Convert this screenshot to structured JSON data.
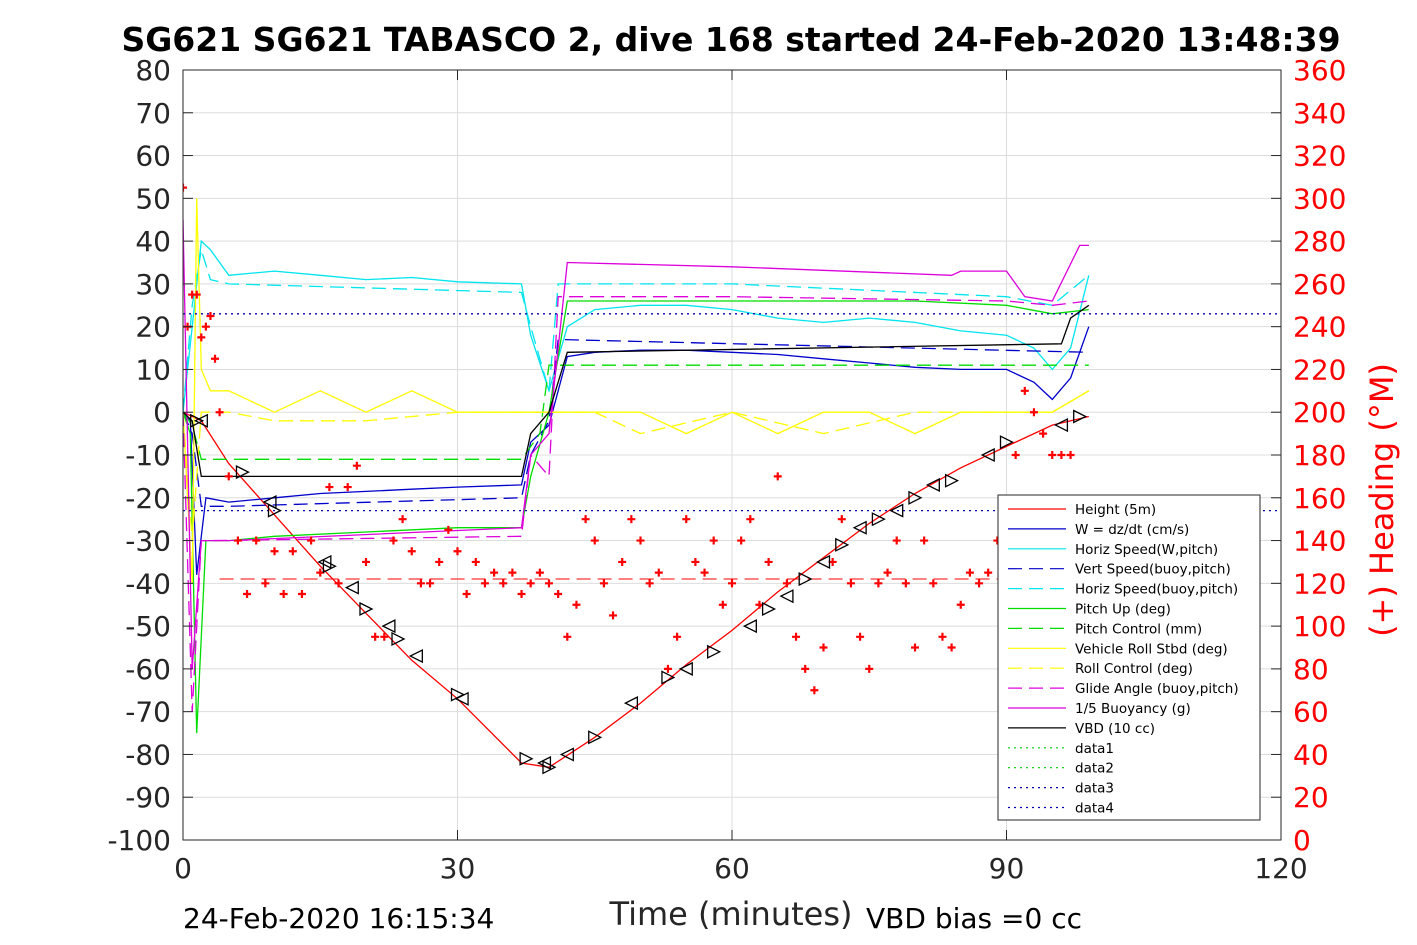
{
  "chart_data": {
    "type": "line",
    "title": "SG621 SG621 TABASCO 2, dive 168 started 24-Feb-2020 13:48:39",
    "xlabel": "Time (minutes)",
    "ylabel": "",
    "y2label": "(+) Heading (°M)",
    "xlim": [
      0,
      120
    ],
    "ylim": [
      -100,
      80
    ],
    "y2lim": [
      0,
      360
    ],
    "xticks": [
      "0",
      "30",
      "60",
      "90",
      "120"
    ],
    "yticks": [
      "80",
      "70",
      "60",
      "50",
      "40",
      "30",
      "20",
      "10",
      "0",
      "-10",
      "-20",
      "-30",
      "-40",
      "-50",
      "-60",
      "-70",
      "-80",
      "-90",
      "-100"
    ],
    "y2ticks": [
      "360",
      "340",
      "320",
      "300",
      "280",
      "260",
      "240",
      "220",
      "200",
      "180",
      "160",
      "140",
      "120",
      "100",
      "80",
      "60",
      "40",
      "20",
      "0"
    ],
    "grid": true,
    "legend_position": "lower-right",
    "footer_left": "24-Feb-2020 16:15:34",
    "footer_right": "VBD bias =0 cc",
    "colors": {
      "height": "#ff0000",
      "w": "#0000cc",
      "horiz": "#00e5ee",
      "pitch": "#00dd00",
      "roll": "#ffff00",
      "glide": "#dd00dd",
      "vbd": "#000000",
      "heading": "#ff0000",
      "data12": "#00cc00",
      "data34": "#0000aa"
    },
    "series": [
      {
        "name": "Height (5m)",
        "style": "solid",
        "color_key": "height",
        "x": [
          0,
          2,
          5,
          10,
          15,
          20,
          25,
          30,
          37,
          40,
          45,
          50,
          55,
          60,
          65,
          70,
          75,
          80,
          85,
          90,
          95,
          99
        ],
        "y": [
          0,
          -2,
          -12,
          -24,
          -36,
          -47,
          -58,
          -67,
          -82,
          -83,
          -76,
          -68,
          -59,
          -51,
          -42,
          -34,
          -26,
          -19,
          -13,
          -8,
          -3,
          -1
        ]
      },
      {
        "name": "W = dz/dt (cm/s)",
        "style": "solid",
        "color_key": "w",
        "x": [
          0,
          0.8,
          1.5,
          2.5,
          5,
          10,
          15,
          20,
          25,
          30,
          37,
          38,
          40,
          42,
          45,
          50,
          55,
          60,
          65,
          70,
          75,
          80,
          85,
          90,
          93,
          95,
          97,
          99
        ],
        "y": [
          0,
          -2,
          -38,
          -20,
          -21,
          -20,
          -19,
          -18.5,
          -18,
          -17.5,
          -17,
          -7,
          -3,
          13,
          14,
          14.5,
          14.5,
          14,
          13.5,
          12.5,
          11.5,
          10.5,
          10,
          10,
          7,
          3,
          8,
          20
        ]
      },
      {
        "name": "Horiz Speed(W,pitch)",
        "style": "solid",
        "color_key": "horiz",
        "x": [
          0,
          1,
          2,
          3,
          5,
          10,
          15,
          20,
          25,
          30,
          37,
          38,
          40,
          42,
          45,
          50,
          55,
          60,
          65,
          70,
          75,
          80,
          85,
          90,
          93,
          95,
          97,
          99
        ],
        "y": [
          0,
          20,
          40,
          38,
          32,
          33,
          32,
          31,
          31.5,
          30.5,
          30,
          18,
          5,
          20,
          24,
          25,
          25,
          24,
          22,
          21,
          22,
          21,
          19,
          18,
          15,
          10,
          15,
          32
        ]
      },
      {
        "name": "Vert Speed(buoy,pitch)",
        "style": "dashed",
        "color_key": "w",
        "x": [
          0,
          1,
          2,
          5,
          37,
          38,
          40,
          41,
          99
        ],
        "y": [
          0,
          -5,
          -22,
          -22,
          -20,
          -10,
          -2,
          17,
          14
        ]
      },
      {
        "name": "Horiz Speed(buoy,pitch)",
        "style": "dashed",
        "color_key": "horiz",
        "x": [
          0,
          1,
          2,
          3,
          5,
          37,
          38,
          40,
          41,
          60,
          90,
          95,
          99
        ],
        "y": [
          0,
          25,
          38,
          31,
          30,
          28,
          20,
          5,
          30,
          30,
          27,
          25,
          32
        ]
      },
      {
        "name": "Pitch Up (deg)",
        "style": "solid",
        "color_key": "pitch",
        "x": [
          0,
          0.8,
          1.5,
          2.5,
          5,
          10,
          20,
          30,
          37,
          38,
          40,
          42,
          50,
          60,
          70,
          80,
          90,
          95,
          99
        ],
        "y": [
          0,
          -5,
          -75,
          -30,
          -30,
          -29,
          -28,
          -27,
          -27,
          -15,
          0,
          26,
          26,
          26,
          26,
          26,
          25,
          23,
          24
        ]
      },
      {
        "name": "Pitch Control (mm)",
        "style": "dashed",
        "color_key": "pitch",
        "x": [
          0,
          1,
          2,
          37,
          39,
          40,
          99
        ],
        "y": [
          0,
          -3,
          -11,
          -11,
          -5,
          11,
          11
        ]
      },
      {
        "name": "Vehicle Roll Stbd (deg)",
        "style": "solid",
        "color_key": "roll",
        "x": [
          0,
          1,
          1.5,
          2,
          3,
          5,
          10,
          15,
          20,
          25,
          30,
          37,
          40,
          45,
          50,
          55,
          60,
          65,
          70,
          75,
          80,
          85,
          90,
          95,
          99
        ],
        "y": [
          0,
          -40,
          50,
          10,
          5,
          5,
          0,
          5,
          0,
          5,
          0,
          0,
          0,
          0,
          0,
          -5,
          0,
          -5,
          0,
          0,
          -5,
          0,
          0,
          0,
          5
        ]
      },
      {
        "name": "Roll Control (deg)",
        "style": "dashed",
        "color_key": "roll",
        "x": [
          0,
          1,
          2,
          5,
          10,
          20,
          30,
          37,
          40,
          45,
          50,
          60,
          70,
          80,
          90,
          95,
          99
        ],
        "y": [
          0,
          -30,
          0,
          0,
          -2,
          -2,
          0,
          0,
          0,
          0,
          -5,
          0,
          -5,
          0,
          0,
          0,
          5
        ]
      },
      {
        "name": "Glide Angle (buoy,pitch)",
        "style": "dashed",
        "color_key": "glide",
        "x": [
          0,
          1,
          2,
          3,
          37,
          38,
          40,
          41,
          60,
          90,
          95,
          99
        ],
        "y": [
          0,
          -70,
          -30,
          -30,
          -29,
          -10,
          -15,
          27,
          27,
          26,
          25,
          26
        ]
      },
      {
        "name": "1/5 Buoyancy (g)",
        "style": "solid",
        "color_key": "glide",
        "x": [
          0,
          1,
          2,
          5,
          37,
          38,
          40,
          42,
          60,
          84,
          85,
          90,
          92,
          95,
          98,
          99
        ],
        "y": [
          45,
          -60,
          -30,
          -30,
          -27,
          -10,
          -5,
          35,
          34,
          32,
          33,
          33,
          27,
          26,
          39,
          39
        ]
      },
      {
        "name": "VBD (10 cc)",
        "style": "solid",
        "color_key": "vbd",
        "x": [
          0,
          1,
          2,
          3,
          37,
          38,
          40,
          42,
          96,
          97,
          99
        ],
        "y": [
          0,
          -2,
          -15,
          -15,
          -15,
          -5,
          0,
          14,
          16,
          22,
          25
        ]
      },
      {
        "name": "data1",
        "style": "dotted",
        "color_key": "data12",
        "x": [],
        "y": []
      },
      {
        "name": "data2",
        "style": "dotted",
        "color_key": "data12",
        "x": [],
        "y": []
      },
      {
        "name": "data3",
        "style": "dotted",
        "color_key": "data34",
        "x": [
          0,
          120
        ],
        "y": [
          23,
          23
        ]
      },
      {
        "name": "data4",
        "style": "dotted",
        "color_key": "data34",
        "x": [
          0,
          120
        ],
        "y": [
          -23,
          -23
        ]
      }
    ],
    "heading": {
      "axis": "right",
      "x": [
        0,
        0.5,
        1,
        1.5,
        2,
        2.5,
        3,
        3.5,
        4,
        5,
        6,
        7,
        8,
        9,
        10,
        11,
        12,
        13,
        14,
        15,
        16,
        17,
        18,
        19,
        20,
        21,
        22,
        23,
        24,
        25,
        26,
        27,
        28,
        29,
        30,
        31,
        32,
        33,
        34,
        35,
        36,
        37,
        38,
        39,
        40,
        41,
        42,
        43,
        44,
        45,
        46,
        47,
        48,
        49,
        50,
        51,
        52,
        53,
        54,
        55,
        56,
        57,
        58,
        59,
        60,
        61,
        62,
        63,
        64,
        65,
        66,
        67,
        68,
        69,
        70,
        71,
        72,
        73,
        74,
        75,
        76,
        77,
        78,
        79,
        80,
        81,
        82,
        83,
        84,
        85,
        86,
        87,
        88,
        89,
        90,
        91,
        92,
        93,
        94,
        95,
        96,
        97
      ],
      "y": [
        305,
        240,
        255,
        255,
        235,
        240,
        245,
        225,
        200,
        170,
        140,
        115,
        140,
        120,
        135,
        115,
        135,
        115,
        140,
        125,
        165,
        120,
        165,
        175,
        130,
        95,
        95,
        140,
        150,
        135,
        120,
        120,
        130,
        145,
        135,
        115,
        130,
        120,
        125,
        120,
        125,
        115,
        120,
        125,
        120,
        115,
        95,
        110,
        150,
        140,
        120,
        105,
        130,
        150,
        140,
        120,
        125,
        80,
        95,
        150,
        130,
        125,
        140,
        110,
        120,
        140,
        150,
        110,
        130,
        170,
        120,
        95,
        80,
        70,
        90,
        130,
        150,
        120,
        95,
        80,
        120,
        125,
        140,
        120,
        90,
        140,
        120,
        95,
        90,
        110,
        125,
        120,
        125,
        140,
        150,
        180,
        210,
        200,
        190,
        180,
        180,
        180
      ]
    },
    "markers": {
      "symbol": "triangle",
      "x": [
        1.5,
        2,
        6.5,
        9.5,
        10,
        15.5,
        16,
        18.5,
        20,
        22.5,
        23.5,
        25.5,
        30,
        30.5,
        37.5,
        39.5,
        40,
        42,
        45,
        49,
        53,
        55,
        58,
        62,
        64,
        66,
        68,
        70,
        72,
        74,
        76,
        78,
        80,
        82,
        84,
        88,
        90,
        96,
        98
      ],
      "y": [
        -2,
        -2,
        -14,
        -21,
        -23,
        -35,
        -36,
        -41,
        -46,
        -50,
        -53,
        -57,
        -66,
        -67,
        -81,
        -82,
        -83,
        -80,
        -76,
        -68,
        -62,
        -60,
        -56,
        -50,
        -46,
        -43,
        -39,
        -35,
        -31,
        -27,
        -25,
        -23,
        -20,
        -17,
        -16,
        -10,
        -7,
        -3,
        -1
      ]
    },
    "reference_line": {
      "name": "",
      "y": -39,
      "x": [
        4,
        90
      ],
      "color_key": "height",
      "style": "dashed"
    }
  }
}
